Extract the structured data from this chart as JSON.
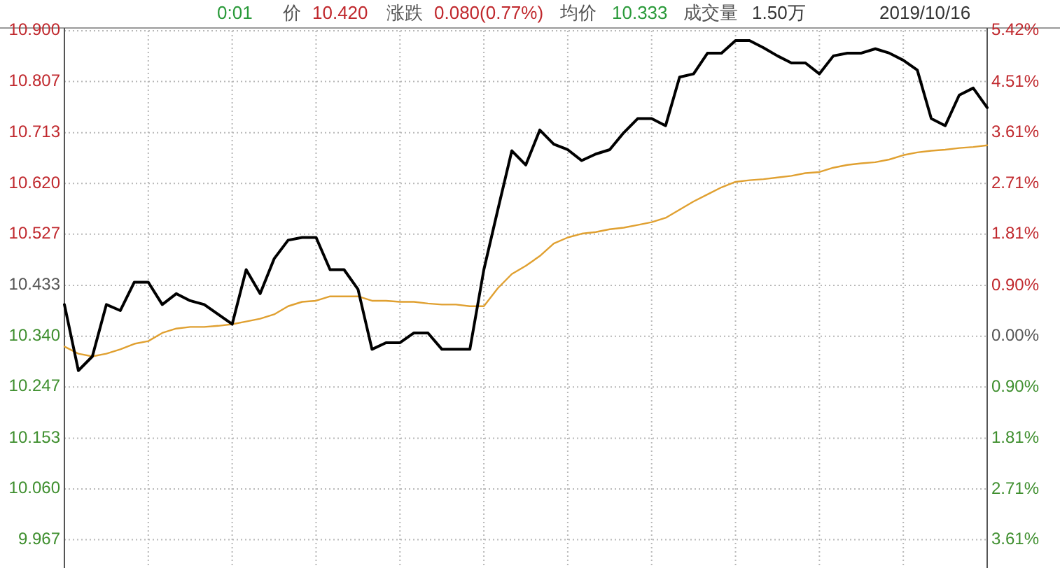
{
  "chart_data": {
    "type": "line",
    "annotations": [
      "0:01",
      "价",
      "10.420",
      "涨跌",
      "0.080(0.77%)",
      "均价",
      "10.333",
      "成交量",
      "1.50万",
      "2019/10/16"
    ],
    "categories": [
      null,
      null,
      null,
      null,
      null,
      null,
      null,
      null,
      null,
      null,
      null,
      null,
      null,
      null,
      null,
      null,
      null,
      null,
      null,
      null,
      null,
      null,
      null,
      null,
      null,
      null,
      null,
      null,
      null,
      null,
      null,
      null,
      null,
      null,
      null,
      null,
      null,
      null,
      null,
      null,
      null,
      null,
      null,
      null,
      null,
      null,
      null,
      null,
      null,
      null,
      null,
      null,
      null,
      null,
      null,
      null,
      null,
      null,
      null,
      null,
      null,
      null,
      null,
      null,
      null,
      null,
      null
    ],
    "series": [
      {
        "color": "#e0a030",
        "values": [
          10.321,
          10.308,
          10.303,
          10.308,
          10.316,
          10.326,
          10.331,
          10.346,
          10.354,
          10.357,
          10.357,
          10.359,
          10.362,
          10.367,
          10.372,
          10.38,
          10.395,
          10.403,
          10.405,
          10.413,
          10.413,
          10.413,
          10.405,
          10.405,
          10.403,
          10.403,
          10.4,
          10.398,
          10.398,
          10.395,
          10.395,
          10.428,
          10.454,
          10.469,
          10.487,
          10.51,
          10.521,
          10.528,
          10.531,
          10.536,
          10.539,
          10.544,
          10.549,
          10.557,
          10.572,
          10.587,
          10.6,
          10.613,
          10.623,
          10.626,
          10.628,
          10.631,
          10.634,
          10.639,
          10.641,
          10.649,
          10.654,
          10.657,
          10.659,
          10.664,
          10.672,
          10.677,
          10.68,
          10.682,
          10.685,
          10.687,
          10.69
        ]
      },
      {
        "color": "#000000",
        "values": [
          10.398,
          10.277,
          10.303,
          10.398,
          10.387,
          10.439,
          10.439,
          10.398,
          10.418,
          10.405,
          10.398,
          10.38,
          10.362,
          10.462,
          10.418,
          10.482,
          10.516,
          10.521,
          10.521,
          10.462,
          10.462,
          10.426,
          10.316,
          10.328,
          10.328,
          10.346,
          10.346,
          10.316,
          10.316,
          10.316,
          10.462,
          10.572,
          10.68,
          10.654,
          10.718,
          10.692,
          10.682,
          10.662,
          10.674,
          10.682,
          10.713,
          10.739,
          10.739,
          10.726,
          10.815,
          10.821,
          10.859,
          10.859,
          10.882,
          10.882,
          10.869,
          10.854,
          10.841,
          10.841,
          10.821,
          10.854,
          10.859,
          10.859,
          10.867,
          10.859,
          10.846,
          10.828,
          10.739,
          10.726,
          10.782,
          10.795,
          10.759
        ]
      }
    ],
    "ylim": [
      9.915,
      10.9
    ],
    "yticks": [
      {
        "value": 10.9,
        "label": "10.900"
      },
      10.807,
      10.713,
      {
        "value": 10.62,
        "label": "10.620"
      },
      10.527,
      10.433,
      {
        "value": 10.34,
        "label": "10.340"
      },
      10.247,
      10.153,
      {
        "value": 10.06,
        "label": "10.060"
      },
      9.967
    ],
    "y2lim": [
      -4.11,
      5.42
    ],
    "y2ticks": [
      {
        "value": 5.42,
        "label": "5.42%"
      },
      {
        "value": 4.51,
        "label": "4.51%"
      },
      {
        "value": 3.61,
        "label": "3.61%"
      },
      {
        "value": 2.71,
        "label": "2.71%"
      },
      {
        "value": 1.81,
        "label": "1.81%"
      },
      {
        "value": 0.9,
        "label": "0.90%"
      },
      {
        "value": 0,
        "label": "0.00%"
      },
      {
        "value": -0.9,
        "label": "0.90%"
      },
      {
        "value": -1.81,
        "label": "1.81%"
      },
      {
        "value": -2.71,
        "label": "2.71%"
      },
      {
        "value": -3.61,
        "label": "3.61%"
      }
    ],
    "grid": true,
    "line_style": "solid",
    "marker": "none"
  }
}
